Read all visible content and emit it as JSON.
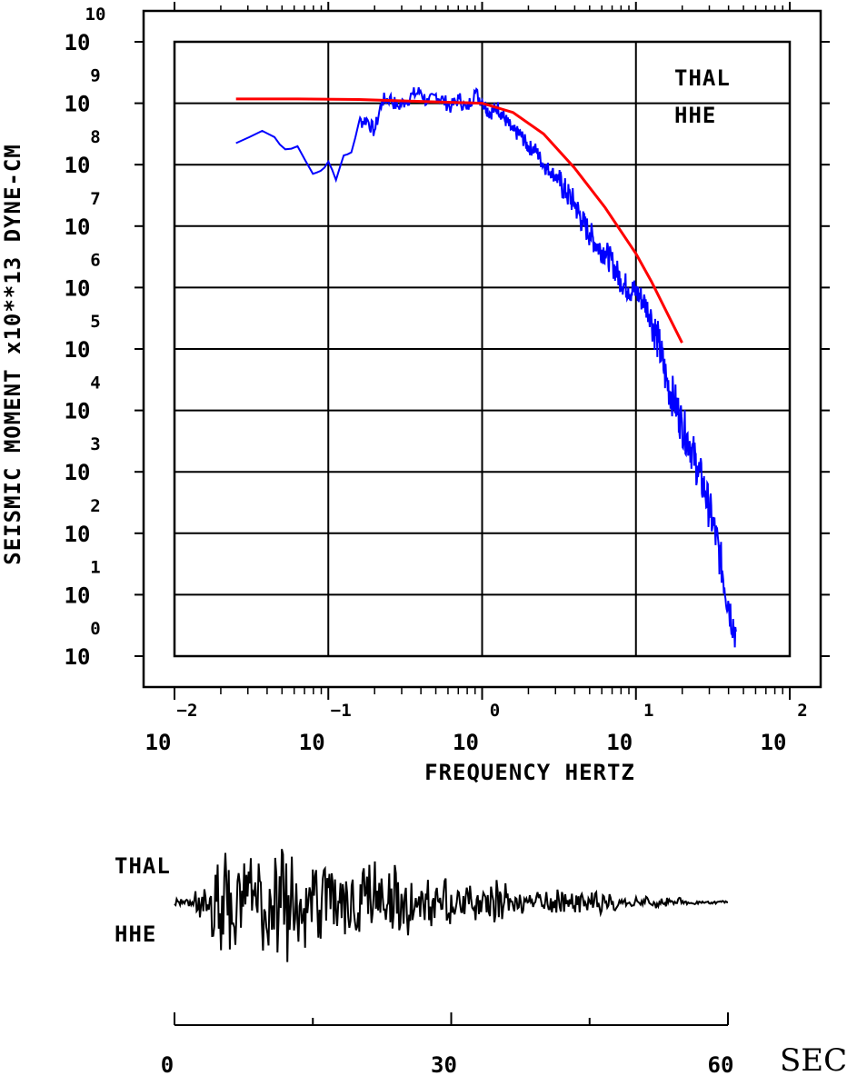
{
  "chart_data": [
    {
      "type": "line",
      "xlabel": "FREQUENCY HERTZ",
      "ylabel": "SEISMIC MOMENT x10**13 DYNE-CM",
      "x_scale": "log",
      "y_scale": "log",
      "xlim_exp": [
        -2,
        2
      ],
      "ylim_exp": [
        0,
        10
      ],
      "x_tick_base": "10",
      "x_tick_exponents": [
        "−2",
        "−1",
        "0",
        "1",
        "2"
      ],
      "y_tick_base": "10",
      "y_tick_exponents": [
        "0",
        "1",
        "2",
        "3",
        "4",
        "5",
        "6",
        "7",
        "8",
        "9",
        "10"
      ],
      "grid": true,
      "annotation": [
        "THAL",
        "HHE"
      ],
      "colors": {
        "spectrum": "#0000ff",
        "model": "#ff0000"
      },
      "series": [
        {
          "role": "spectrum",
          "x_log": [
            -1.6,
            -1.43,
            -1.35,
            -1.28,
            -1.2,
            -1.1,
            -1.05,
            -1.0,
            -0.95,
            -0.9,
            -0.85,
            -0.8,
            -0.75,
            -0.7,
            -0.65,
            -0.6,
            -0.55,
            -0.5,
            -0.45,
            -0.4,
            -0.35,
            -0.3,
            -0.25,
            -0.2,
            -0.15,
            -0.1,
            -0.05,
            0.0,
            0.05,
            0.1,
            0.15,
            0.2,
            0.25,
            0.3,
            0.35,
            0.4,
            0.45,
            0.5,
            0.55,
            0.6,
            0.65,
            0.7,
            0.75,
            0.8,
            0.85,
            0.9,
            0.95,
            1.0,
            1.05,
            1.1,
            1.15,
            1.2,
            1.25,
            1.3,
            1.35,
            1.4,
            1.45,
            1.5,
            1.55,
            1.6,
            1.65
          ],
          "y_log": [
            8.35,
            8.55,
            8.45,
            8.25,
            8.3,
            7.85,
            7.9,
            8.05,
            7.75,
            8.15,
            8.2,
            8.7,
            8.75,
            8.55,
            9.05,
            9.1,
            8.95,
            9.05,
            9.15,
            9.2,
            9.0,
            9.15,
            9.05,
            8.95,
            9.1,
            8.9,
            9.2,
            9.05,
            8.85,
            8.95,
            8.75,
            8.55,
            8.5,
            8.3,
            8.25,
            8.0,
            7.9,
            7.75,
            7.55,
            7.4,
            7.1,
            6.9,
            6.7,
            6.6,
            6.4,
            6.15,
            6.0,
            5.95,
            5.8,
            5.55,
            5.1,
            4.5,
            4.2,
            3.8,
            3.5,
            3.1,
            2.7,
            2.2,
            1.6,
            0.9,
            0.4
          ]
        },
        {
          "role": "model",
          "x_log": [
            -1.6,
            -1.2,
            -0.8,
            -0.4,
            0.0,
            0.2,
            0.4,
            0.6,
            0.8,
            1.0,
            1.1,
            1.2,
            1.3
          ],
          "y_log": [
            9.07,
            9.07,
            9.06,
            9.03,
            9.0,
            8.85,
            8.5,
            7.95,
            7.3,
            6.55,
            6.1,
            5.6,
            5.1
          ]
        }
      ]
    },
    {
      "type": "line",
      "xlabel": "SEC",
      "xlim": [
        0,
        60
      ],
      "x_ticks": [
        "0",
        "30",
        "60"
      ],
      "annotation": [
        "THAL",
        "HHE"
      ],
      "colors": {
        "trace": "#000000"
      }
    }
  ]
}
